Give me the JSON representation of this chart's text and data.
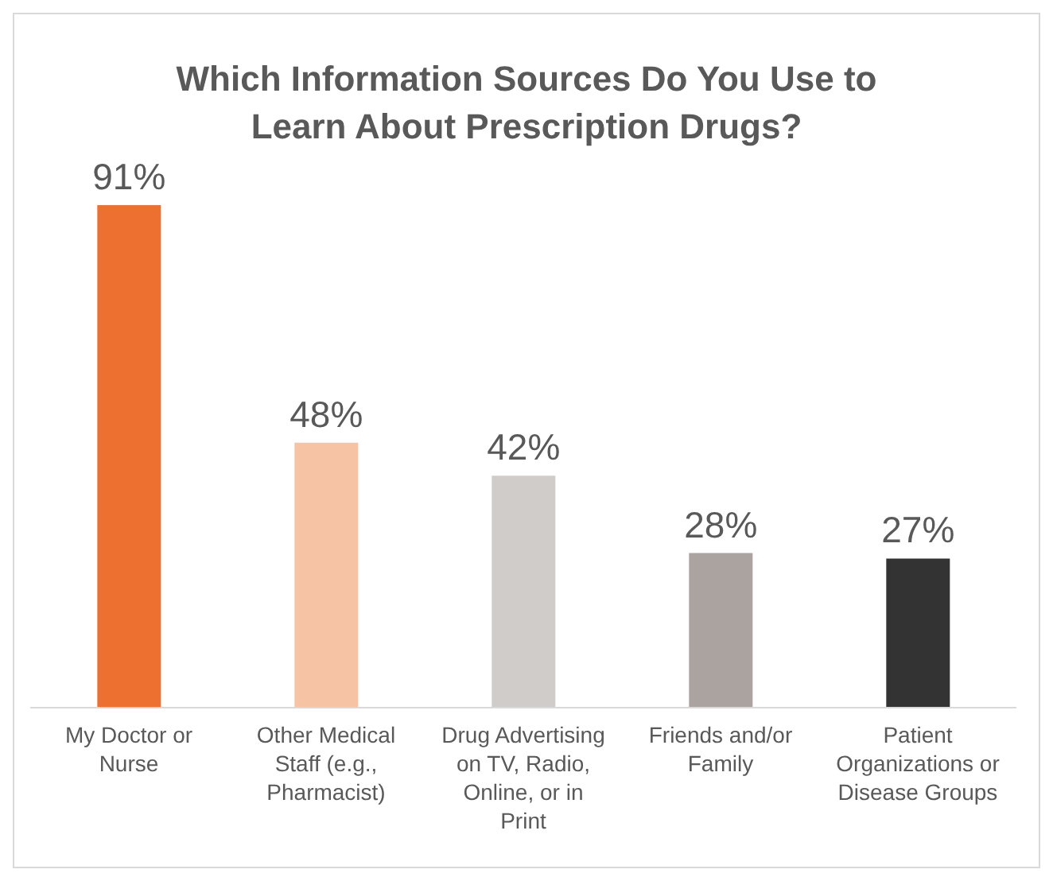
{
  "chart_data": {
    "type": "bar",
    "title": "Which Information Sources Do You Use to Learn About Prescription Drugs?",
    "categories": [
      "My Doctor or Nurse",
      "Other Medical Staff (e.g., Pharmacist)",
      "Drug Advertising on TV, Radio, Online, or in Print",
      "Friends and/or Family",
      "Patient Organizations or Disease Groups"
    ],
    "values": [
      91,
      48,
      42,
      28,
      27
    ],
    "colors": [
      "#ed7031",
      "#f7c3a5",
      "#d0ccc9",
      "#aaa39f",
      "#333333"
    ],
    "value_labels": [
      "91%",
      "48%",
      "42%",
      "28%",
      "27%"
    ],
    "tick_labels": "x"
  }
}
